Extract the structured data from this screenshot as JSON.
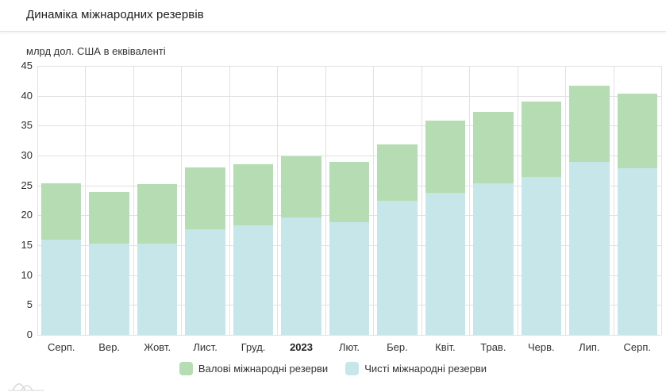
{
  "header": {
    "title": "Динаміка міжнародних резервів"
  },
  "chart_data": {
    "type": "bar",
    "stacked": true,
    "note_rendering": "overlaid stack: blue (net) drawn from 0, green visible part = gross minus net",
    "title": "Динаміка міжнародних резервів",
    "ylabel": "млрд дол. США в еквіваленті",
    "categories": [
      "Серп.",
      "Вер.",
      "Жовт.",
      "Лист.",
      "Груд.",
      "2023",
      "Лют.",
      "Бер.",
      "Квіт.",
      "Трав.",
      "Черв.",
      "Лип.",
      "Серп."
    ],
    "bold_category": "2023",
    "series": [
      {
        "name": "Валові міжнародні резерви",
        "color": "#b5dcb2",
        "values": [
          25.4,
          23.9,
          25.2,
          28.0,
          28.5,
          29.9,
          28.9,
          31.9,
          35.9,
          37.3,
          39.0,
          41.7,
          40.4
        ]
      },
      {
        "name": "Чисті міжнародні резерви",
        "color": "#c7e6ea",
        "values": [
          15.9,
          15.2,
          15.2,
          17.7,
          18.3,
          19.6,
          18.9,
          22.4,
          23.7,
          25.3,
          26.4,
          28.9,
          27.9
        ]
      }
    ],
    "ylim": [
      0,
      45
    ],
    "ytick_step": 5,
    "grid": true,
    "grid_color": "#e1e1e1",
    "legend_position": "bottom"
  },
  "legend": {
    "items": [
      {
        "label": "Валові міжнародні резерви"
      },
      {
        "label": "Чисті міжнародні резерви"
      }
    ]
  }
}
